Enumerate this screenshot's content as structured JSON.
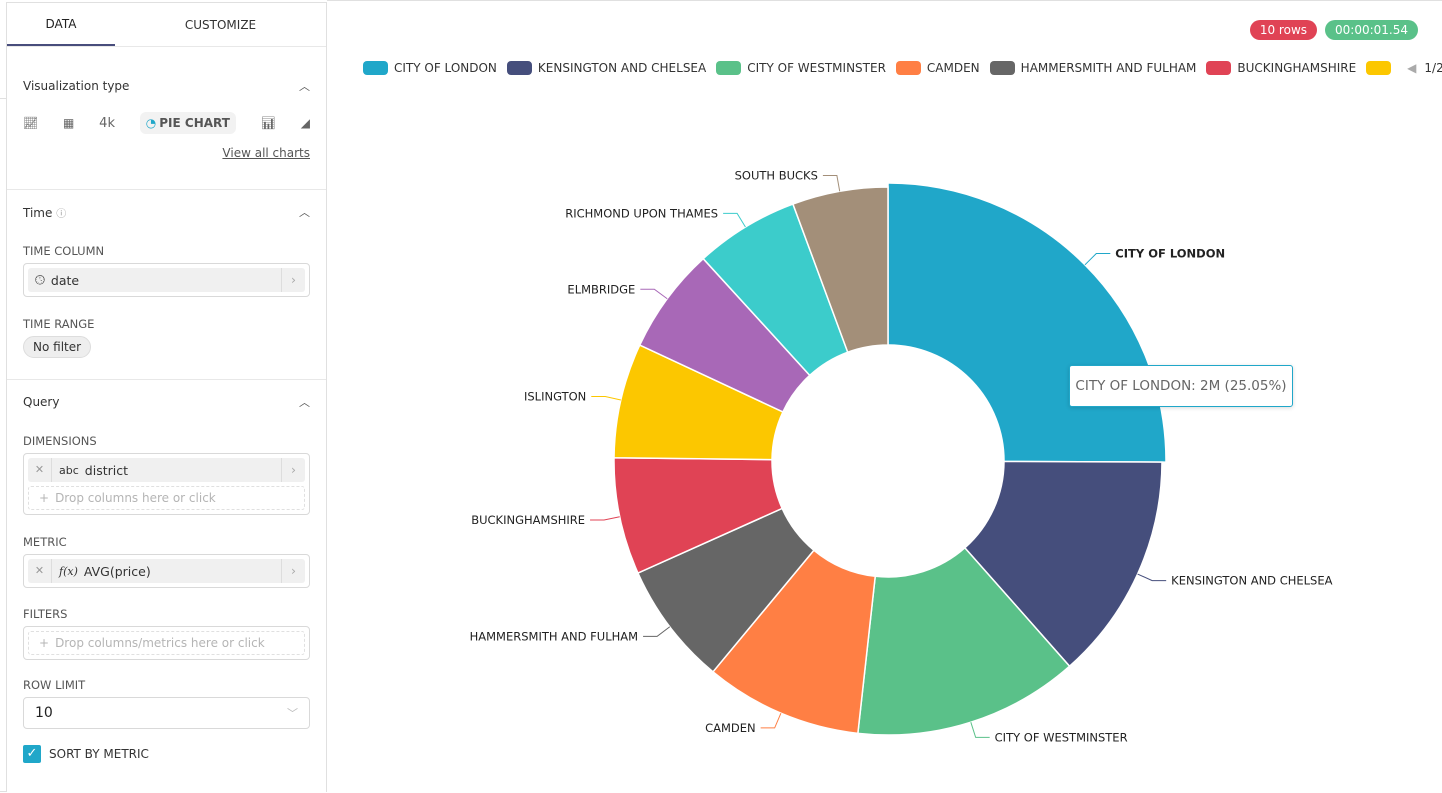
{
  "tabs": {
    "data": "DATA",
    "customize": "CUSTOMIZE"
  },
  "viz": {
    "title": "Visualization type",
    "icons": [
      "line-chart-icon",
      "table-icon"
    ],
    "big_number": "4k",
    "selected": "PIE CHART",
    "view_all": "View all charts"
  },
  "time": {
    "title": "Time",
    "time_column_label": "TIME COLUMN",
    "time_column": "date",
    "time_range_label": "TIME RANGE",
    "time_range": "No filter"
  },
  "query": {
    "title": "Query",
    "dimensions_label": "DIMENSIONS",
    "dimension_type": "abc",
    "dimension": "district",
    "dimensions_placeholder": "Drop columns here or click",
    "metric_label": "METRIC",
    "metric_type": "f(x)",
    "metric": "AVG(price)",
    "filters_label": "FILTERS",
    "filters_placeholder": "Drop columns/metrics here or click",
    "row_limit_label": "ROW LIMIT",
    "row_limit": "10",
    "sort_by_metric_label": "SORT BY METRIC",
    "sort_by_metric": true
  },
  "status": {
    "rows": "10 rows",
    "rows_color": "#e04355",
    "time": "00:00:01.54",
    "time_color": "#5ac189"
  },
  "legend": {
    "page": "1/2"
  },
  "tooltip": "CITY OF LONDON: 2M (25.05%)",
  "chart_data": {
    "type": "pie",
    "donut": true,
    "legend_placement": "top",
    "categories": [
      "CITY OF LONDON",
      "KENSINGTON AND CHELSEA",
      "CITY OF WESTMINSTER",
      "CAMDEN",
      "HAMMERSMITH AND FULHAM",
      "BUCKINGHAMSHIRE",
      "ISLINGTON",
      "ELMBRIDGE",
      "RICHMOND UPON THAMES",
      "SOUTH BUCKS"
    ],
    "values": [
      2000000,
      1070000,
      1060000,
      740000,
      580000,
      550000,
      540000,
      500000,
      490000,
      450000
    ],
    "colors": [
      "#20a7c9",
      "#454e7c",
      "#5ac189",
      "#ff7f44",
      "#666666",
      "#e04355",
      "#fcc700",
      "#a868b7",
      "#3ccccb",
      "#a38f79"
    ],
    "highlighted": "CITY OF LONDON"
  }
}
